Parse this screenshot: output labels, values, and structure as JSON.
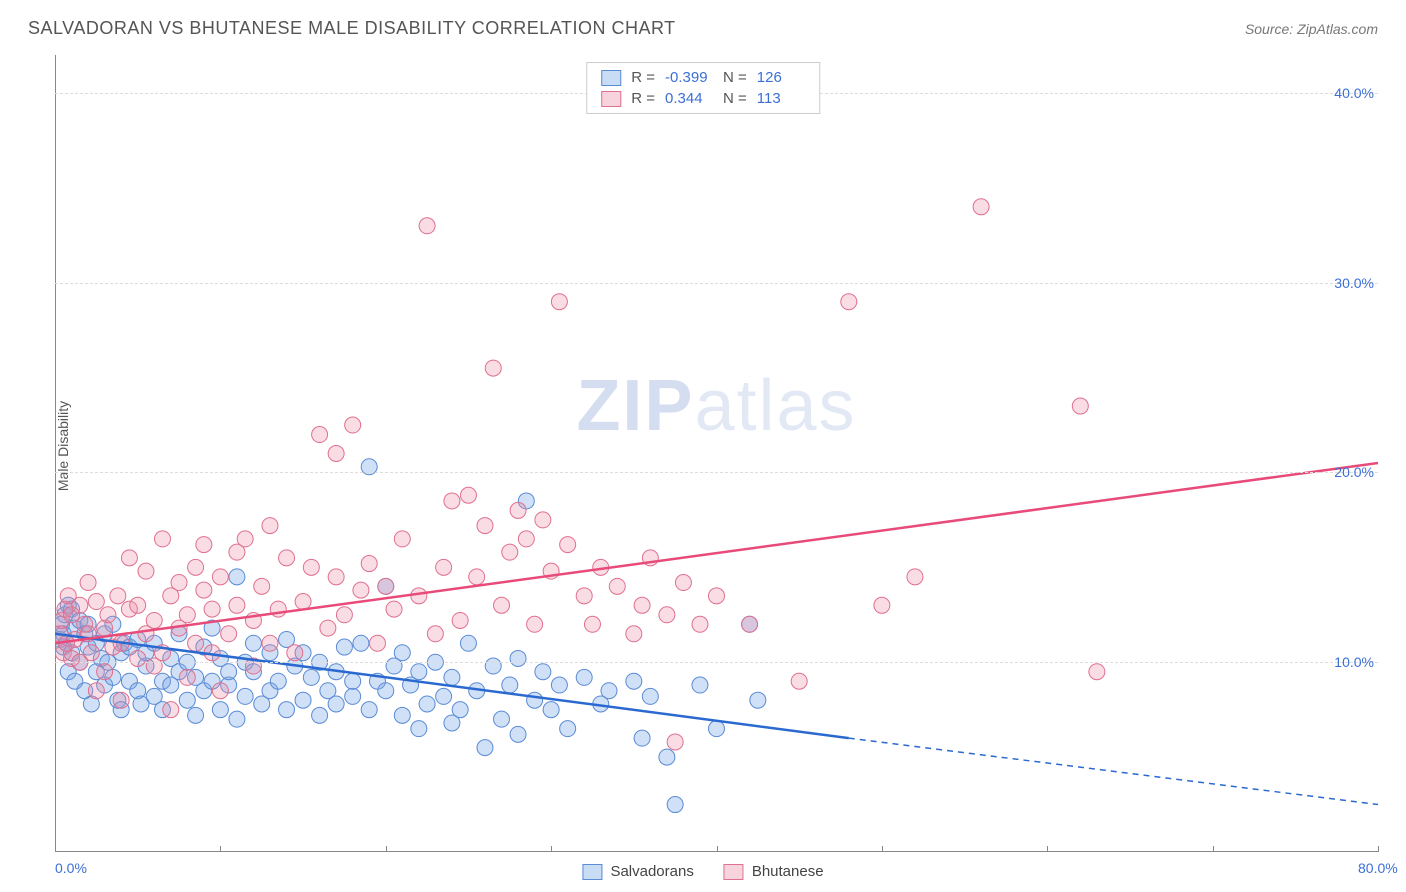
{
  "header": {
    "title": "SALVADORAN VS BHUTANESE MALE DISABILITY CORRELATION CHART",
    "source": "Source: ZipAtlas.com"
  },
  "chart": {
    "type": "scatter",
    "ylabel": "Male Disability",
    "watermark_bold": "ZIP",
    "watermark_light": "atlas",
    "background_color": "#ffffff",
    "grid_color": "#dddddd",
    "axis_color": "#888888",
    "label_color": "#3b6fd6",
    "xlim": [
      0,
      80
    ],
    "ylim": [
      0,
      42
    ],
    "xticks": [
      0,
      10,
      20,
      30,
      40,
      50,
      60,
      70,
      80
    ],
    "xtick_labels": {
      "0": "0.0%",
      "80": "80.0%"
    },
    "yticks": [
      10,
      20,
      30,
      40
    ],
    "ytick_labels": {
      "10": "10.0%",
      "20": "20.0%",
      "30": "30.0%",
      "40": "40.0%"
    },
    "series": [
      {
        "name": "Salvadorans",
        "color_fill": "rgba(120,165,230,0.35)",
        "color_stroke": "#5a8bd6",
        "marker_radius": 8,
        "stats": {
          "R": "-0.399",
          "N": "126"
        },
        "trend": {
          "color": "#2a6ad0",
          "width": 2.5,
          "x1": 0,
          "y1": 11.5,
          "x2_solid": 48,
          "y2_solid": 6.0,
          "x2_dash": 80,
          "y2_dash": 2.5
        },
        "points": [
          [
            0.3,
            11.2
          ],
          [
            0.4,
            12.0
          ],
          [
            0.5,
            10.8
          ],
          [
            0.5,
            11.5
          ],
          [
            0.6,
            12.5
          ],
          [
            0.7,
            11.0
          ],
          [
            0.8,
            13.0
          ],
          [
            0.8,
            9.5
          ],
          [
            1.0,
            10.5
          ],
          [
            1.0,
            12.8
          ],
          [
            1.2,
            11.8
          ],
          [
            1.2,
            9.0
          ],
          [
            1.5,
            10.0
          ],
          [
            1.5,
            12.2
          ],
          [
            1.8,
            11.5
          ],
          [
            1.8,
            8.5
          ],
          [
            2.0,
            10.8
          ],
          [
            2.0,
            12.0
          ],
          [
            2.2,
            7.8
          ],
          [
            2.5,
            9.5
          ],
          [
            2.5,
            11.0
          ],
          [
            2.8,
            10.2
          ],
          [
            3.0,
            8.8
          ],
          [
            3.0,
            11.5
          ],
          [
            3.2,
            10.0
          ],
          [
            3.5,
            9.2
          ],
          [
            3.5,
            12.0
          ],
          [
            3.8,
            8.0
          ],
          [
            4.0,
            10.5
          ],
          [
            4.0,
            7.5
          ],
          [
            4.2,
            11.0
          ],
          [
            4.5,
            9.0
          ],
          [
            4.5,
            10.8
          ],
          [
            5.0,
            8.5
          ],
          [
            5.0,
            11.2
          ],
          [
            5.2,
            7.8
          ],
          [
            5.5,
            9.8
          ],
          [
            5.5,
            10.5
          ],
          [
            6.0,
            8.2
          ],
          [
            6.0,
            11.0
          ],
          [
            6.5,
            9.0
          ],
          [
            6.5,
            7.5
          ],
          [
            7.0,
            10.2
          ],
          [
            7.0,
            8.8
          ],
          [
            7.5,
            9.5
          ],
          [
            7.5,
            11.5
          ],
          [
            8.0,
            8.0
          ],
          [
            8.0,
            10.0
          ],
          [
            8.5,
            9.2
          ],
          [
            8.5,
            7.2
          ],
          [
            9.0,
            10.8
          ],
          [
            9.0,
            8.5
          ],
          [
            9.5,
            9.0
          ],
          [
            9.5,
            11.8
          ],
          [
            10.0,
            7.5
          ],
          [
            10.0,
            10.2
          ],
          [
            10.5,
            8.8
          ],
          [
            10.5,
            9.5
          ],
          [
            11.0,
            14.5
          ],
          [
            11.0,
            7.0
          ],
          [
            11.5,
            10.0
          ],
          [
            11.5,
            8.2
          ],
          [
            12.0,
            9.5
          ],
          [
            12.0,
            11.0
          ],
          [
            12.5,
            7.8
          ],
          [
            13.0,
            10.5
          ],
          [
            13.0,
            8.5
          ],
          [
            13.5,
            9.0
          ],
          [
            14.0,
            11.2
          ],
          [
            14.0,
            7.5
          ],
          [
            14.5,
            9.8
          ],
          [
            15.0,
            8.0
          ],
          [
            15.0,
            10.5
          ],
          [
            15.5,
            9.2
          ],
          [
            16.0,
            7.2
          ],
          [
            16.0,
            10.0
          ],
          [
            16.5,
            8.5
          ],
          [
            17.0,
            9.5
          ],
          [
            17.0,
            7.8
          ],
          [
            17.5,
            10.8
          ],
          [
            18.0,
            8.2
          ],
          [
            18.0,
            9.0
          ],
          [
            18.5,
            11.0
          ],
          [
            19.0,
            7.5
          ],
          [
            19.0,
            20.3
          ],
          [
            19.5,
            9.0
          ],
          [
            20.0,
            14.0
          ],
          [
            20.0,
            8.5
          ],
          [
            20.5,
            9.8
          ],
          [
            21.0,
            7.2
          ],
          [
            21.0,
            10.5
          ],
          [
            21.5,
            8.8
          ],
          [
            22.0,
            6.5
          ],
          [
            22.0,
            9.5
          ],
          [
            22.5,
            7.8
          ],
          [
            23.0,
            10.0
          ],
          [
            23.5,
            8.2
          ],
          [
            24.0,
            9.2
          ],
          [
            24.0,
            6.8
          ],
          [
            24.5,
            7.5
          ],
          [
            25.0,
            11.0
          ],
          [
            25.5,
            8.5
          ],
          [
            26.0,
            5.5
          ],
          [
            26.5,
            9.8
          ],
          [
            27.0,
            7.0
          ],
          [
            27.5,
            8.8
          ],
          [
            28.0,
            10.2
          ],
          [
            28.0,
            6.2
          ],
          [
            28.5,
            18.5
          ],
          [
            29.0,
            8.0
          ],
          [
            29.5,
            9.5
          ],
          [
            30.0,
            7.5
          ],
          [
            30.5,
            8.8
          ],
          [
            31.0,
            6.5
          ],
          [
            32.0,
            9.2
          ],
          [
            33.0,
            7.8
          ],
          [
            33.5,
            8.5
          ],
          [
            35.0,
            9.0
          ],
          [
            35.5,
            6.0
          ],
          [
            36.0,
            8.2
          ],
          [
            37.0,
            5.0
          ],
          [
            37.5,
            2.5
          ],
          [
            39.0,
            8.8
          ],
          [
            40.0,
            6.5
          ],
          [
            42.0,
            12.0
          ],
          [
            42.5,
            8.0
          ]
        ]
      },
      {
        "name": "Bhutanese",
        "color_fill": "rgba(235,140,165,0.30)",
        "color_stroke": "#e0708f",
        "marker_radius": 8,
        "stats": {
          "R": "0.344",
          "N": "113"
        },
        "trend": {
          "color": "#e84a7a",
          "width": 2.5,
          "x1": 0,
          "y1": 11.0,
          "x2_solid": 80,
          "y2_solid": 20.5,
          "x2_dash": 80,
          "y2_dash": 20.5
        },
        "points": [
          [
            0.3,
            11.5
          ],
          [
            0.4,
            12.2
          ],
          [
            0.5,
            10.5
          ],
          [
            0.6,
            12.8
          ],
          [
            0.7,
            11.0
          ],
          [
            0.8,
            13.5
          ],
          [
            1.0,
            10.2
          ],
          [
            1.0,
            12.5
          ],
          [
            1.2,
            11.2
          ],
          [
            1.5,
            13.0
          ],
          [
            1.5,
            10.0
          ],
          [
            1.8,
            12.0
          ],
          [
            2.0,
            11.5
          ],
          [
            2.0,
            14.2
          ],
          [
            2.2,
            10.5
          ],
          [
            2.5,
            13.2
          ],
          [
            2.5,
            8.5
          ],
          [
            3.0,
            11.8
          ],
          [
            3.0,
            9.5
          ],
          [
            3.2,
            12.5
          ],
          [
            3.5,
            10.8
          ],
          [
            3.8,
            13.5
          ],
          [
            4.0,
            11.0
          ],
          [
            4.0,
            8.0
          ],
          [
            4.5,
            12.8
          ],
          [
            4.5,
            15.5
          ],
          [
            5.0,
            10.2
          ],
          [
            5.0,
            13.0
          ],
          [
            5.5,
            11.5
          ],
          [
            5.5,
            14.8
          ],
          [
            6.0,
            9.8
          ],
          [
            6.0,
            12.2
          ],
          [
            6.5,
            16.5
          ],
          [
            6.5,
            10.5
          ],
          [
            7.0,
            13.5
          ],
          [
            7.0,
            7.5
          ],
          [
            7.5,
            11.8
          ],
          [
            7.5,
            14.2
          ],
          [
            8.0,
            12.5
          ],
          [
            8.0,
            9.2
          ],
          [
            8.5,
            15.0
          ],
          [
            8.5,
            11.0
          ],
          [
            9.0,
            13.8
          ],
          [
            9.0,
            16.2
          ],
          [
            9.5,
            10.5
          ],
          [
            9.5,
            12.8
          ],
          [
            10.0,
            14.5
          ],
          [
            10.0,
            8.5
          ],
          [
            10.5,
            11.5
          ],
          [
            11.0,
            15.8
          ],
          [
            11.0,
            13.0
          ],
          [
            11.5,
            16.5
          ],
          [
            12.0,
            12.2
          ],
          [
            12.0,
            9.8
          ],
          [
            12.5,
            14.0
          ],
          [
            13.0,
            11.0
          ],
          [
            13.0,
            17.2
          ],
          [
            13.5,
            12.8
          ],
          [
            14.0,
            15.5
          ],
          [
            14.5,
            10.5
          ],
          [
            15.0,
            13.2
          ],
          [
            15.5,
            15.0
          ],
          [
            16.0,
            22.0
          ],
          [
            16.5,
            11.8
          ],
          [
            17.0,
            14.5
          ],
          [
            17.0,
            21.0
          ],
          [
            17.5,
            12.5
          ],
          [
            18.0,
            22.5
          ],
          [
            18.5,
            13.8
          ],
          [
            19.0,
            15.2
          ],
          [
            19.5,
            11.0
          ],
          [
            20.0,
            14.0
          ],
          [
            20.5,
            12.8
          ],
          [
            21.0,
            16.5
          ],
          [
            22.0,
            13.5
          ],
          [
            22.5,
            33.0
          ],
          [
            23.0,
            11.5
          ],
          [
            23.5,
            15.0
          ],
          [
            24.0,
            18.5
          ],
          [
            24.5,
            12.2
          ],
          [
            25.0,
            18.8
          ],
          [
            25.5,
            14.5
          ],
          [
            26.0,
            17.2
          ],
          [
            26.5,
            25.5
          ],
          [
            27.0,
            13.0
          ],
          [
            27.5,
            15.8
          ],
          [
            28.0,
            18.0
          ],
          [
            28.5,
            16.5
          ],
          [
            29.0,
            12.0
          ],
          [
            29.5,
            17.5
          ],
          [
            30.0,
            14.8
          ],
          [
            30.5,
            29.0
          ],
          [
            31.0,
            16.2
          ],
          [
            32.0,
            13.5
          ],
          [
            32.5,
            12.0
          ],
          [
            33.0,
            15.0
          ],
          [
            34.0,
            14.0
          ],
          [
            35.0,
            11.5
          ],
          [
            35.5,
            13.0
          ],
          [
            36.0,
            15.5
          ],
          [
            37.0,
            12.5
          ],
          [
            37.5,
            5.8
          ],
          [
            38.0,
            14.2
          ],
          [
            39.0,
            12.0
          ],
          [
            40.0,
            13.5
          ],
          [
            42.0,
            12.0
          ],
          [
            45.0,
            9.0
          ],
          [
            48.0,
            29.0
          ],
          [
            50.0,
            13.0
          ],
          [
            52.0,
            14.5
          ],
          [
            56.0,
            34.0
          ],
          [
            62.0,
            23.5
          ],
          [
            63.0,
            9.5
          ]
        ]
      }
    ],
    "legend": [
      "Salvadorans",
      "Bhutanese"
    ],
    "stat_box": {
      "swatch_blue_fill": "#c9dcf5",
      "swatch_blue_border": "#5a8bd6",
      "swatch_pink_fill": "#f7d3de",
      "swatch_pink_border": "#e0708f",
      "R_label": "R =",
      "N_label": "N ="
    }
  }
}
